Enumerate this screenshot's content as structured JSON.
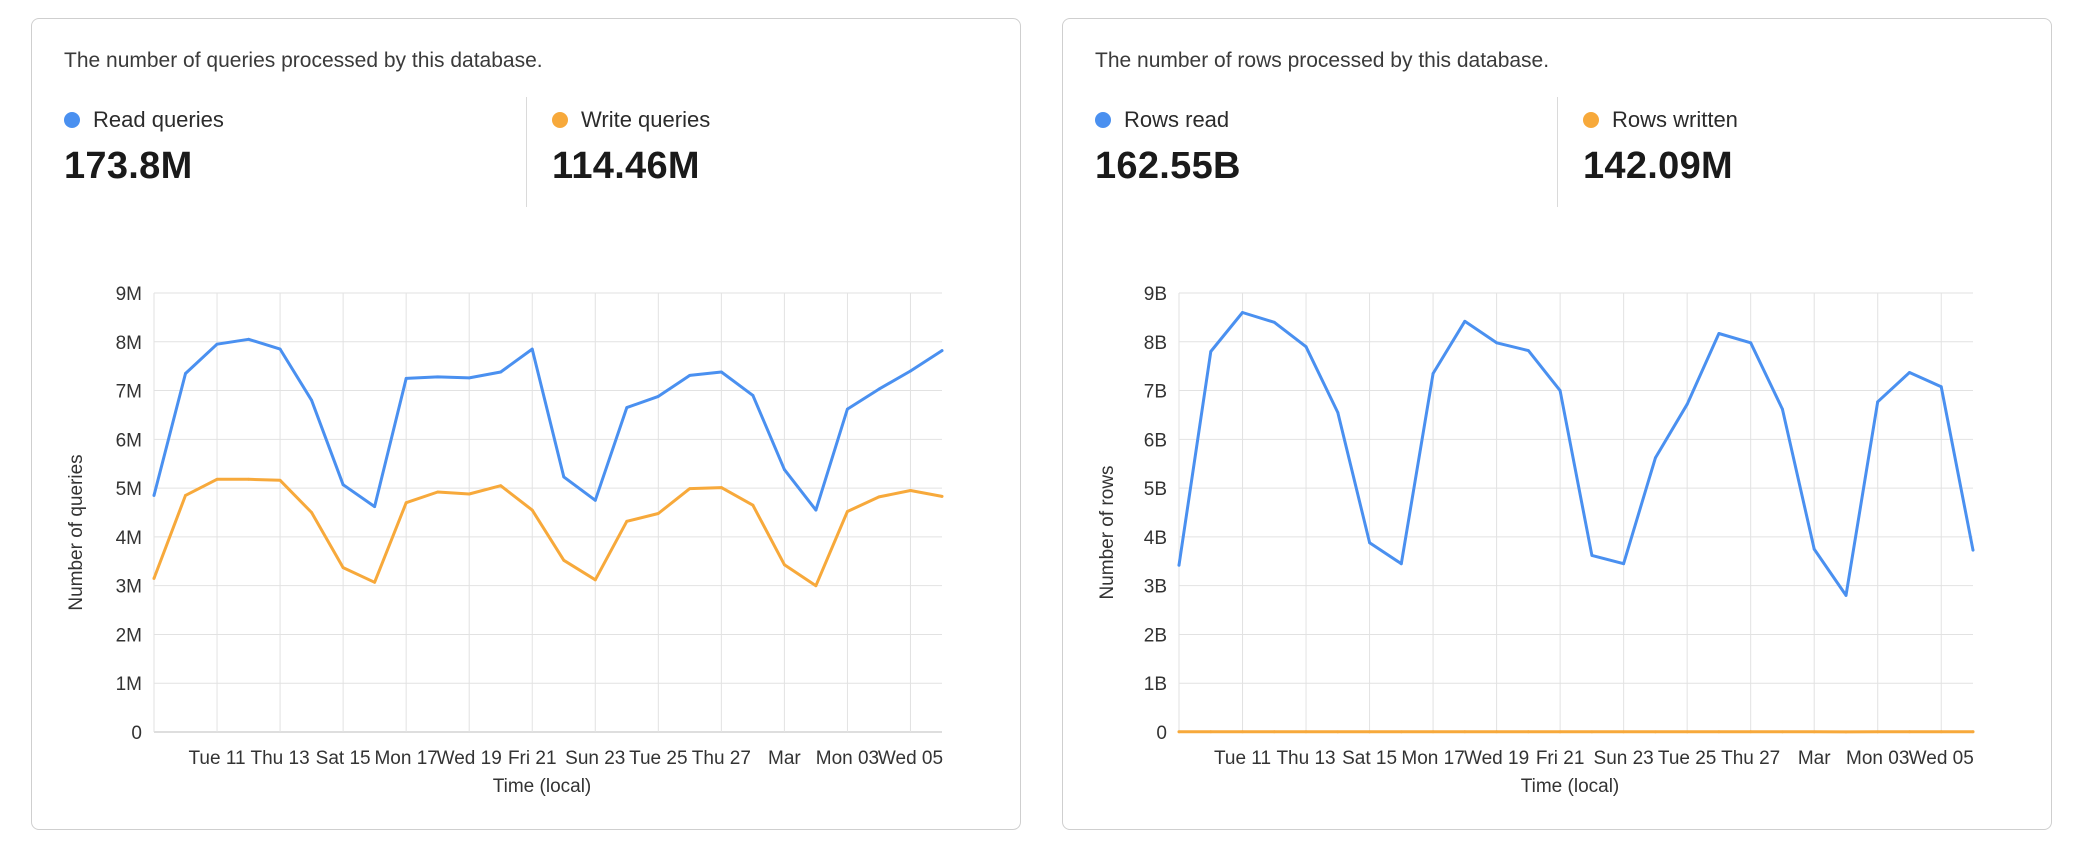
{
  "colors": {
    "read": "#4a90f0",
    "write": "#f7a93b",
    "grid": "#e2e2e2",
    "axis": "#bdbdbd"
  },
  "queries_card": {
    "description": "The number of queries processed by this database.",
    "metric_a": {
      "label": "Read queries",
      "value": "173.8M"
    },
    "metric_b": {
      "label": "Write queries",
      "value": "114.46M"
    }
  },
  "rows_card": {
    "description": "The number of rows processed by this database.",
    "metric_a": {
      "label": "Rows read",
      "value": "162.55B"
    },
    "metric_b": {
      "label": "Rows written",
      "value": "142.09M"
    }
  },
  "chart_data": [
    {
      "type": "line",
      "title": "",
      "xlabel": "Time (local)",
      "ylabel": "Number of queries",
      "ylim": [
        0,
        9000000
      ],
      "y_ticks": [
        "0",
        "1M",
        "2M",
        "3M",
        "4M",
        "5M",
        "6M",
        "7M",
        "8M",
        "9M"
      ],
      "x_tick_labels": [
        "Tue 11",
        "Thu 13",
        "Sat 15",
        "Mon 17",
        "Wed 19",
        "Fri 21",
        "Sun 23",
        "Tue 25",
        "Thu 27",
        "Mar",
        "Mon 03",
        "Wed 05"
      ],
      "grid": true,
      "series": [
        {
          "name": "Read queries",
          "color": "#4a90f0",
          "values": [
            4.85,
            7.35,
            7.95,
            8.05,
            7.85,
            6.8,
            5.07,
            4.62,
            7.25,
            7.28,
            7.26,
            7.38,
            7.85,
            5.23,
            4.75,
            6.65,
            6.88,
            7.31,
            7.38,
            6.9,
            5.38,
            4.55,
            6.62,
            7.03,
            7.4,
            7.82
          ]
        },
        {
          "name": "Write queries",
          "color": "#f7a93b",
          "values": [
            3.15,
            4.85,
            5.18,
            5.18,
            5.16,
            4.5,
            3.37,
            3.07,
            4.7,
            4.92,
            4.88,
            5.05,
            4.55,
            3.52,
            3.12,
            4.32,
            4.48,
            4.99,
            5.01,
            4.65,
            3.43,
            3.0,
            4.52,
            4.82,
            4.95,
            4.83
          ]
        }
      ],
      "value_unit_multiplier": 1000000
    },
    {
      "type": "line",
      "title": "",
      "xlabel": "Time (local)",
      "ylabel": "Number of rows",
      "ylim": [
        0,
        9000000000
      ],
      "y_ticks": [
        "0",
        "1B",
        "2B",
        "3B",
        "4B",
        "5B",
        "6B",
        "7B",
        "8B",
        "9B"
      ],
      "x_tick_labels": [
        "Tue 11",
        "Thu 13",
        "Sat 15",
        "Mon 17",
        "Wed 19",
        "Fri 21",
        "Sun 23",
        "Tue 25",
        "Thu 27",
        "Mar",
        "Mon 03",
        "Wed 05"
      ],
      "grid": true,
      "series": [
        {
          "name": "Rows read",
          "color": "#4a90f0",
          "values": [
            3.42,
            7.8,
            8.6,
            8.4,
            7.9,
            6.55,
            3.88,
            3.45,
            7.35,
            8.42,
            7.98,
            7.82,
            7.0,
            3.62,
            3.45,
            5.62,
            6.72,
            8.17,
            7.98,
            6.62,
            3.75,
            2.8,
            6.77,
            7.37,
            7.08,
            3.73
          ]
        },
        {
          "name": "Rows written",
          "color": "#f7a93b",
          "values": [
            0.005,
            0.006,
            0.006,
            0.006,
            0.006,
            0.005,
            0.004,
            0.004,
            0.006,
            0.006,
            0.006,
            0.006,
            0.005,
            0.004,
            0.004,
            0.005,
            0.005,
            0.006,
            0.006,
            0.005,
            0.004,
            0.003,
            0.005,
            0.006,
            0.006,
            0.006
          ]
        }
      ],
      "value_unit_multiplier": 1000000000
    }
  ]
}
